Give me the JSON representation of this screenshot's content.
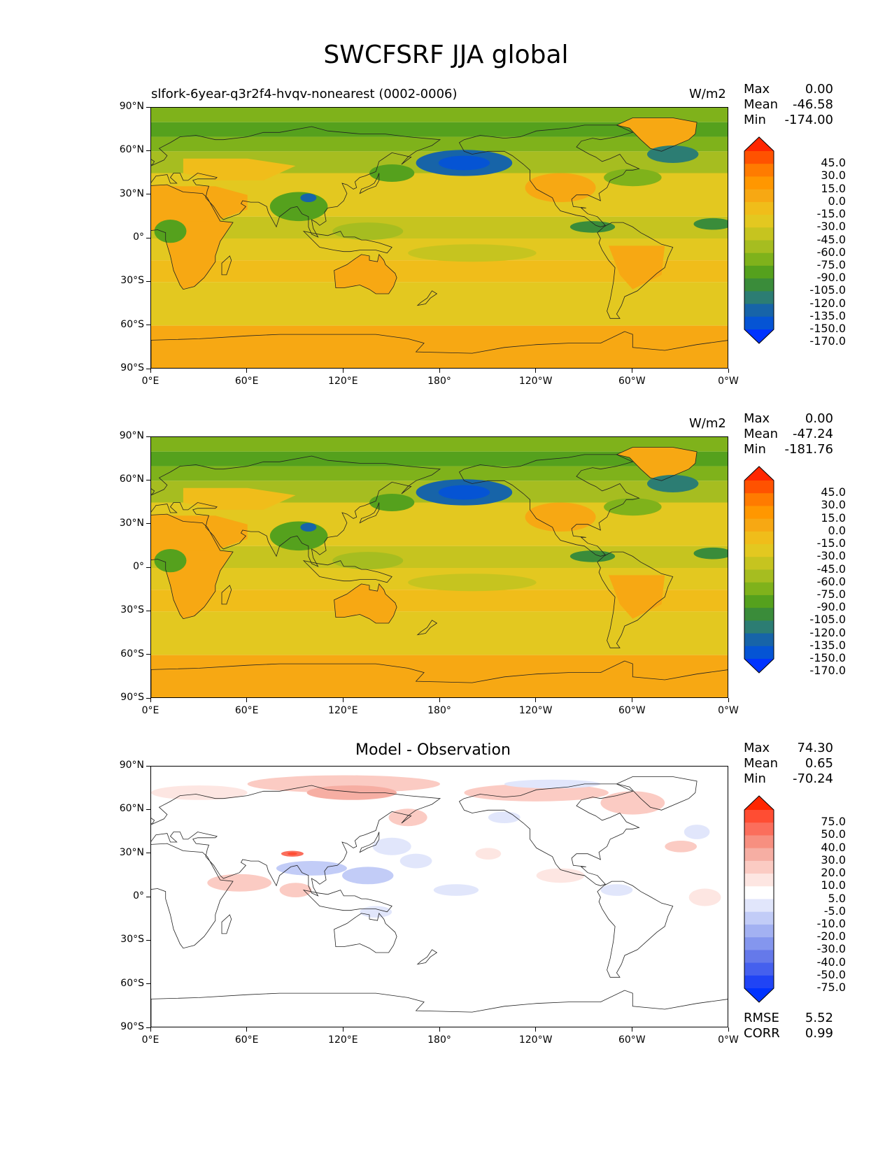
{
  "title": "SWCFSRF JJA global",
  "lat_labels": [
    "90°N",
    "60°N",
    "30°N",
    "0°",
    "30°S",
    "60°S",
    "90°S"
  ],
  "lon_labels": [
    "0°E",
    "60°E",
    "120°E",
    "180°",
    "120°W",
    "60°W",
    "0°W"
  ],
  "stat_names": {
    "max": "Max",
    "mean": "Mean",
    "min": "Min",
    "rmse": "RMSE",
    "corr": "CORR"
  },
  "panels": [
    {
      "title": "slfork-6year-q3r2f4-hvqv-nonearest (0002-0006)",
      "units": "W/m2",
      "stats": {
        "max": "0.00",
        "mean": "-46.58",
        "min": "-174.00"
      },
      "colorbar_labels": [
        "45.0",
        "30.0",
        "15.0",
        "0.0",
        "-15.0",
        "-30.0",
        "-45.0",
        "-60.0",
        "-75.0",
        "-90.0",
        "-105.0",
        "-120.0",
        "-135.0",
        "-150.0",
        "-170.0"
      ],
      "colorbar_colors": [
        "#ff2600",
        "#ff5200",
        "#ff7b00",
        "#ff9700",
        "#f7a813",
        "#f0bd1a",
        "#e3c820",
        "#c6c41f",
        "#a6bd20",
        "#7fb21b",
        "#55a11d",
        "#3a8c3a",
        "#2c7d73",
        "#1764a8",
        "#0554d4",
        "#0033ff"
      ],
      "field": "absolute"
    },
    {
      "title": "",
      "units": "W/m2",
      "stats": {
        "max": "0.00",
        "mean": "-47.24",
        "min": "-181.76"
      },
      "colorbar_labels": [
        "45.0",
        "30.0",
        "15.0",
        "0.0",
        "-15.0",
        "-30.0",
        "-45.0",
        "-60.0",
        "-75.0",
        "-90.0",
        "-105.0",
        "-120.0",
        "-135.0",
        "-150.0",
        "-170.0"
      ],
      "colorbar_colors": [
        "#ff2600",
        "#ff5200",
        "#ff7b00",
        "#ff9700",
        "#f7a813",
        "#f0bd1a",
        "#e3c820",
        "#c6c41f",
        "#a6bd20",
        "#7fb21b",
        "#55a11d",
        "#3a8c3a",
        "#2c7d73",
        "#1764a8",
        "#0554d4",
        "#0033ff"
      ],
      "field": "absolute"
    },
    {
      "title": "Model - Observation",
      "units": "",
      "stats": {
        "max": "74.30",
        "mean": "0.65",
        "min": "-70.24"
      },
      "colorbar_labels": [
        "75.0",
        "50.0",
        "40.0",
        "30.0",
        "20.0",
        "10.0",
        "5.0",
        "-5.0",
        "-10.0",
        "-20.0",
        "-30.0",
        "-40.0",
        "-50.0",
        "-75.0"
      ],
      "colorbar_colors": [
        "#ff2600",
        "#ff4d33",
        "#fb6e5c",
        "#f78f80",
        "#f6aea3",
        "#fbcbc3",
        "#fde6e2",
        "#ffffff",
        "#e1e6fb",
        "#c2ccf7",
        "#a3b1f2",
        "#8496ee",
        "#6579ea",
        "#4560ee",
        "#2044f5",
        "#0033ff"
      ],
      "field": "difference",
      "footer": {
        "rmse": "5.52",
        "corr": "0.99"
      }
    }
  ]
}
